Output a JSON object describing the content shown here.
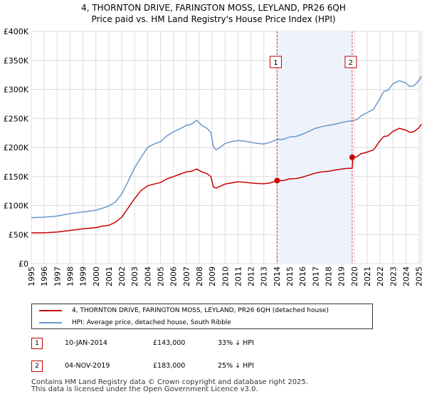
{
  "title_line1": "4, THORNTON DRIVE, FARINGTON MOSS, LEYLAND, PR26 6QH",
  "title_line2": "Price paid vs. HM Land Registry's House Price Index (HPI)",
  "colors": {
    "property": "#cc0000",
    "hpi": "#6a96cc",
    "grid": "#dddddd",
    "marker_line": "#cc0000"
  },
  "legend": {
    "property_label": "4, THORNTON DRIVE, FARINGTON MOSS, LEYLAND, PR26 6QH (detached house)",
    "hpi_label": "HPI: Average price, detached house, South Ribble"
  },
  "sales": [
    {
      "num": "1",
      "date": "10-JAN-2014",
      "price": "£143,000",
      "diff": "33% ↓ HPI"
    },
    {
      "num": "2",
      "date": "04-NOV-2019",
      "price": "£183,000",
      "diff": "25% ↓ HPI"
    }
  ],
  "footer_line1": "Contains HM Land Registry data © Crown copyright and database right 2025.",
  "footer_line2": "This data is licensed under the Open Government Licence v3.0.",
  "chart_data": {
    "type": "line",
    "title": "4, THORNTON DRIVE, FARINGTON MOSS, LEYLAND, PR26 6QH — Price paid vs. HM Land Registry's House Price Index (HPI)",
    "xlim": [
      1995,
      2025.3
    ],
    "ylim": [
      0,
      400000
    ],
    "y_ticks": [
      0,
      50000,
      100000,
      150000,
      200000,
      250000,
      300000,
      350000,
      400000
    ],
    "y_tick_labels": [
      "£0",
      "£50K",
      "£100K",
      "£150K",
      "£200K",
      "£250K",
      "£300K",
      "£350K",
      "£400K"
    ],
    "x_ticks": [
      1995,
      1996,
      1997,
      1998,
      1999,
      2000,
      2001,
      2002,
      2003,
      2004,
      2005,
      2006,
      2007,
      2008,
      2009,
      2010,
      2011,
      2012,
      2013,
      2014,
      2015,
      2016,
      2017,
      2018,
      2019,
      2020,
      2021,
      2022,
      2023,
      2024,
      2025
    ],
    "grid": true,
    "series": [
      {
        "name": "4, THORNTON DRIVE, FARINGTON MOSS, LEYLAND, PR26 6QH (detached house)",
        "color": "#cc0000",
        "x": [
          1995,
          1996,
          1997,
          1998,
          1999,
          2000,
          2000.5,
          2001,
          2001.5,
          2002,
          2002.5,
          2003,
          2003.5,
          2004,
          2004.5,
          2005,
          2005.5,
          2006,
          2006.5,
          2007,
          2007.4,
          2007.8,
          2008.2,
          2008.6,
          2008.9,
          2009.1,
          2009.3,
          2009.6,
          2010,
          2010.5,
          2011,
          2011.5,
          2012,
          2012.5,
          2013,
          2013.5,
          2014.03,
          2014.5,
          2015,
          2015.5,
          2016,
          2016.5,
          2017,
          2017.5,
          2018,
          2018.5,
          2019,
          2019.5,
          2019.84,
          2019.9,
          2020.2,
          2020.5,
          2021,
          2021.5,
          2022,
          2022.3,
          2022.6,
          2023,
          2023.5,
          2024,
          2024.3,
          2024.6,
          2025,
          2025.2
        ],
        "y": [
          53000,
          53000,
          54500,
          57000,
          60000,
          62000,
          64500,
          66000,
          71000,
          80000,
          96000,
          112000,
          126000,
          134000,
          137000,
          139500,
          146000,
          150000,
          154000,
          158000,
          159000,
          163000,
          158000,
          155000,
          150000,
          132000,
          130000,
          133000,
          137000,
          139000,
          141000,
          140000,
          139000,
          138000,
          137500,
          139000,
          143000,
          143000,
          146000,
          146500,
          149000,
          152500,
          156000,
          158000,
          159000,
          161000,
          163000,
          164000,
          164000,
          183000,
          184000,
          189000,
          192000,
          196000,
          212000,
          219000,
          220000,
          228000,
          233000,
          230000,
          226000,
          227000,
          234000,
          240000
        ]
      },
      {
        "name": "HPI: Average price, detached house, South Ribble",
        "color": "#6a96cc",
        "x": [
          1995,
          1996,
          1997,
          1998,
          1999,
          2000,
          2000.5,
          2001,
          2001.5,
          2002,
          2002.5,
          2003,
          2003.5,
          2004,
          2004.5,
          2005,
          2005.5,
          2006,
          2006.5,
          2007,
          2007.4,
          2007.8,
          2008.2,
          2008.6,
          2008.9,
          2009.1,
          2009.3,
          2009.6,
          2010,
          2010.5,
          2011,
          2011.5,
          2012,
          2012.5,
          2013,
          2013.5,
          2014.03,
          2014.5,
          2015,
          2015.5,
          2016,
          2016.5,
          2017,
          2017.5,
          2018,
          2018.5,
          2019,
          2019.5,
          2019.84,
          2020.2,
          2020.5,
          2021,
          2021.5,
          2022,
          2022.3,
          2022.6,
          2023,
          2023.5,
          2024,
          2024.3,
          2024.6,
          2025,
          2025.2
        ],
        "y": [
          79000,
          80000,
          82000,
          86000,
          89000,
          92000,
          95500,
          99000,
          106000,
          120000,
          142000,
          165000,
          183000,
          200000,
          206000,
          210000,
          220000,
          227000,
          232000,
          238000,
          240000,
          247000,
          238000,
          233000,
          226000,
          201000,
          196000,
          200000,
          207000,
          210000,
          212000,
          211000,
          209000,
          207000,
          206000,
          209000,
          214000,
          214000,
          218000,
          219000,
          223000,
          228000,
          233000,
          236000,
          238000,
          240000,
          243000,
          245000,
          246000,
          248000,
          254000,
          260000,
          266000,
          285000,
          297000,
          298000,
          310000,
          315000,
          311000,
          305000,
          306000,
          315000,
          323000
        ]
      }
    ],
    "annotations": [
      {
        "label": "1",
        "x": 2014.03,
        "y": 143000
      },
      {
        "label": "2",
        "x": 2019.84,
        "y": 183000
      }
    ]
  }
}
